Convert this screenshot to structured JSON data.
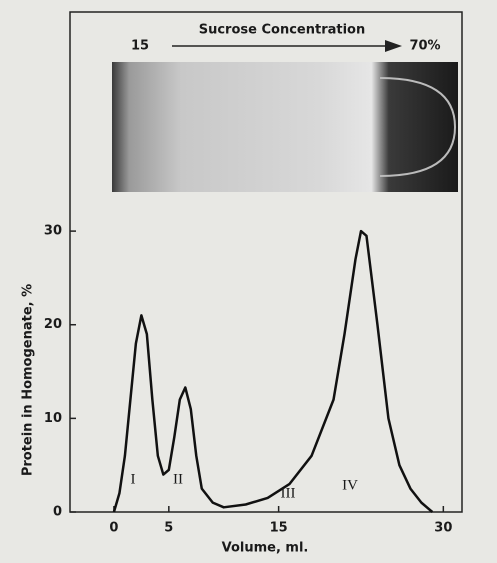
{
  "chart_data": {
    "type": "line",
    "title": "Sucrose Concentration",
    "gradient_start": "15",
    "gradient_end": "70%",
    "x_label": "Volume, ml.",
    "y_label": "Protein in Homogenate, %",
    "x": [
      0,
      0.5,
      1,
      1.5,
      2,
      2.5,
      3,
      3.5,
      4,
      4.5,
      5,
      5.5,
      6,
      6.5,
      7,
      7.5,
      8,
      9,
      10,
      12,
      14,
      16,
      18,
      20,
      21,
      22,
      22.5,
      23,
      24,
      25,
      26,
      27,
      28,
      29
    ],
    "series": [
      {
        "color": "#111111",
        "values": [
          0,
          2,
          6,
          12,
          18,
          21,
          19,
          12,
          6,
          4,
          4.5,
          8,
          12,
          13.3,
          11,
          6,
          2.5,
          1,
          0.5,
          0.8,
          1.5,
          3,
          6,
          12,
          19,
          27,
          30,
          29.5,
          20,
          10,
          5,
          2.5,
          1,
          0
        ]
      }
    ],
    "annotations": [
      "I",
      "II",
      "III",
      "IV"
    ],
    "xlim": [
      -4,
      31.7
    ],
    "ylim": [
      0,
      53.4
    ],
    "xticks": [
      0,
      5,
      15,
      30
    ],
    "yticks": [
      0,
      10,
      20,
      30
    ]
  }
}
